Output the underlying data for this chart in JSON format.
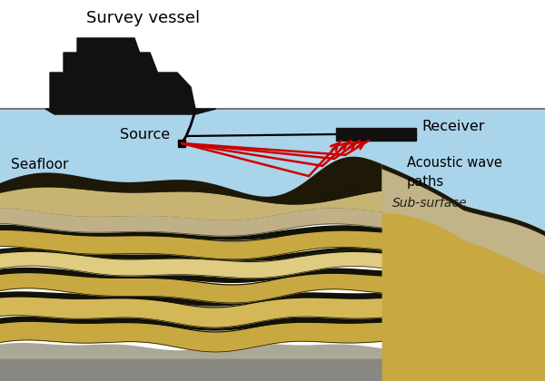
{
  "bg_white": "#ffffff",
  "water_color": "#aad4ea",
  "vessel_color": "#111111",
  "wave_red": "#cc0000",
  "seafloor_dark": "#1a1205",
  "seafloor_sand": "#c8b060",
  "seafloor_gray": "#b0a080",
  "sub_gold": "#d4b040",
  "sub_cream": "#e8d898",
  "sub_gray": "#a09878",
  "title": "Survey vessel",
  "lbl_source": "Source",
  "lbl_receiver": "Receiver",
  "lbl_seafloor": "Seafloor",
  "lbl_subsurface": "Sub-surface",
  "lbl_waves": "Acoustic wave\npaths",
  "figsize": [
    6.0,
    4.2
  ],
  "dpi": 100
}
